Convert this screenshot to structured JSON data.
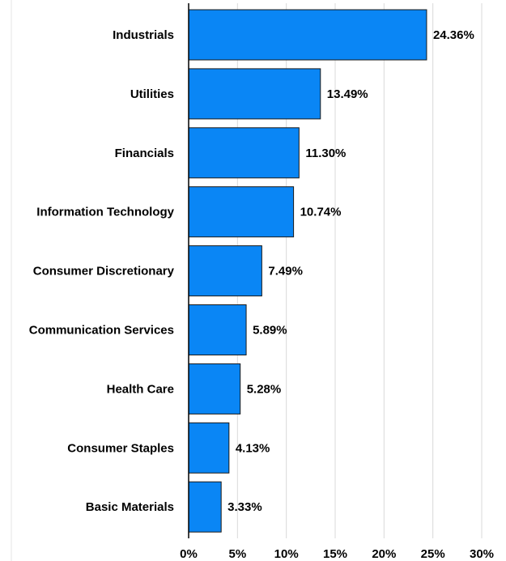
{
  "chart_data": {
    "type": "bar",
    "orientation": "horizontal",
    "title": "",
    "xlabel": "",
    "ylabel": "",
    "categories": [
      "Industrials",
      "Utilities",
      "Financials",
      "Information Technology",
      "Consumer Discretionary",
      "Communication Services",
      "Health Care",
      "Consumer Staples",
      "Basic Materials"
    ],
    "values": [
      24.36,
      13.49,
      11.3,
      10.74,
      7.49,
      5.89,
      5.28,
      4.13,
      3.33
    ],
    "value_labels": [
      "24.36%",
      "13.49%",
      "11.30%",
      "10.74%",
      "7.49%",
      "5.89%",
      "5.28%",
      "4.13%",
      "3.33%"
    ],
    "xlim": [
      0,
      30
    ],
    "x_ticks": [
      0,
      5,
      10,
      15,
      20,
      25,
      30
    ],
    "x_tick_labels": [
      "0%",
      "5%",
      "10%",
      "15%",
      "20%",
      "25%",
      "30%"
    ],
    "grid": "vertical",
    "legend": "none",
    "colors": {
      "bar_fill": "#0a86f5",
      "bar_stroke": "#1a1a1a",
      "grid": "#d9d9d9",
      "axis": "#000000"
    }
  }
}
